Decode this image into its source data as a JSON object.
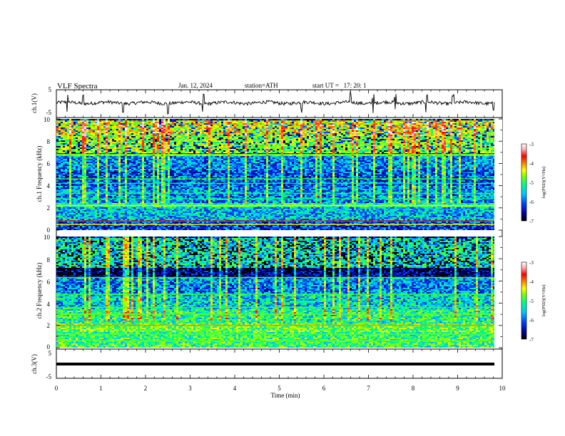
{
  "header": {
    "title": "VLF Spectra",
    "date": "Jan. 12, 2024",
    "station": "station=ATH",
    "start_ut": "start UT =   17: 20: 1"
  },
  "colors": {
    "colormap": [
      "#000000",
      "#0000a0",
      "#0040ff",
      "#00c8ff",
      "#00ff80",
      "#80ff00",
      "#ffff00",
      "#ff8000",
      "#ff0000",
      "#ffb0b0",
      "#ffffff"
    ]
  },
  "chart_data": [
    {
      "type": "line",
      "name": "ch1-waveform",
      "ylabel": "ch.1(V)",
      "ylim": [
        -5,
        5
      ],
      "yticks": [
        "5",
        "-5"
      ],
      "xlim": [
        0,
        10
      ],
      "baseline": 0.3,
      "noise": 0.6,
      "spikes": [
        0.25,
        0.6,
        1.5,
        2.5,
        3.3,
        5.5,
        6.6,
        7.1,
        7.6,
        8.3,
        8.9,
        9.8
      ]
    },
    {
      "type": "heatmap",
      "name": "ch1-spectrogram",
      "ylabel": "ch.1 Frequency (kHz)",
      "ylim": [
        0,
        10
      ],
      "yticks": [
        "0",
        "2",
        "4",
        "6",
        "8",
        "10"
      ],
      "xlim": [
        0,
        9.83
      ],
      "colorbar": {
        "label": "log(PSD)(V²/Hz)",
        "range": [
          -7,
          -3
        ],
        "ticks": [
          "-3",
          "-4",
          "-5",
          "-6",
          "-7"
        ]
      },
      "bands": [
        {
          "f": [
            8.7,
            10
          ],
          "level": -4.6
        },
        {
          "f": [
            7.0,
            8.7
          ],
          "level": -5.0
        },
        {
          "f": [
            6.7,
            6.9
          ],
          "level": -5.1
        },
        {
          "f": [
            5.5,
            6.7
          ],
          "level": -6.0
        },
        {
          "f": [
            4.0,
            5.5
          ],
          "level": -6.2
        },
        {
          "f": [
            2.5,
            4.0
          ],
          "level": -6.0
        },
        {
          "f": [
            2.1,
            2.5
          ],
          "level": -5.4
        },
        {
          "f": [
            1.0,
            2.1
          ],
          "level": -5.8
        },
        {
          "f": [
            0.0,
            1.0
          ],
          "level": -6.3
        }
      ],
      "lines": [
        {
          "f": 6.8,
          "level": -5.0
        },
        {
          "f": 4.6,
          "level": -5.2
        },
        {
          "f": 4.2,
          "level": -5.4
        },
        {
          "f": 3.3,
          "level": -5.3
        },
        {
          "f": 2.8,
          "level": -5.4
        },
        {
          "f": 2.2,
          "level": -4.6
        },
        {
          "f": 0.8,
          "level": -4.0
        },
        {
          "f": 0.5,
          "level": -4.6
        }
      ]
    },
    {
      "type": "heatmap",
      "name": "ch2-spectrogram",
      "ylabel": "ch.2 Frequency (kHz)",
      "ylim": [
        0,
        10
      ],
      "yticks": [
        "0",
        "2",
        "4",
        "6",
        "8",
        "10"
      ],
      "xlim": [
        0,
        9.83
      ],
      "colorbar": {
        "label": "log(PSD)(V²/Hz)",
        "range": [
          -7,
          -3
        ],
        "ticks": [
          "-3",
          "-4",
          "-5",
          "-6",
          "-7"
        ]
      },
      "bands": [
        {
          "f": [
            7.3,
            10
          ],
          "level": -5.6
        },
        {
          "f": [
            6.3,
            7.3
          ],
          "level": -6.7
        },
        {
          "f": [
            5.0,
            6.3
          ],
          "level": -6.0
        },
        {
          "f": [
            3.5,
            5.0
          ],
          "level": -5.7
        },
        {
          "f": [
            2.3,
            3.5
          ],
          "level": -5.4
        },
        {
          "f": [
            1.5,
            2.3
          ],
          "level": -5.1
        },
        {
          "f": [
            0.0,
            1.5
          ],
          "level": -5.3
        }
      ],
      "lines": [
        {
          "f": 6.3,
          "level": -5.0
        },
        {
          "f": 4.8,
          "level": -5.2
        },
        {
          "f": 3.6,
          "level": -5.2
        },
        {
          "f": 3.0,
          "level": -5.1
        },
        {
          "f": 2.0,
          "level": -4.2
        },
        {
          "f": 1.2,
          "level": -5.2
        },
        {
          "f": 0.6,
          "level": -5.1
        }
      ]
    },
    {
      "type": "line",
      "name": "ch3-waveform",
      "ylabel": "ch.3(V)",
      "ylim": [
        -5,
        5
      ],
      "yticks": [
        "5",
        "-5"
      ],
      "xlim": [
        0,
        10
      ],
      "baseline": 0.0,
      "noise": 0.05,
      "spikes": []
    }
  ],
  "x_axis": {
    "label": "Time (min)",
    "xlim": [
      0,
      10
    ],
    "ticks": [
      "0",
      "1",
      "2",
      "3",
      "4",
      "5",
      "6",
      "7",
      "8",
      "9",
      "10"
    ]
  }
}
